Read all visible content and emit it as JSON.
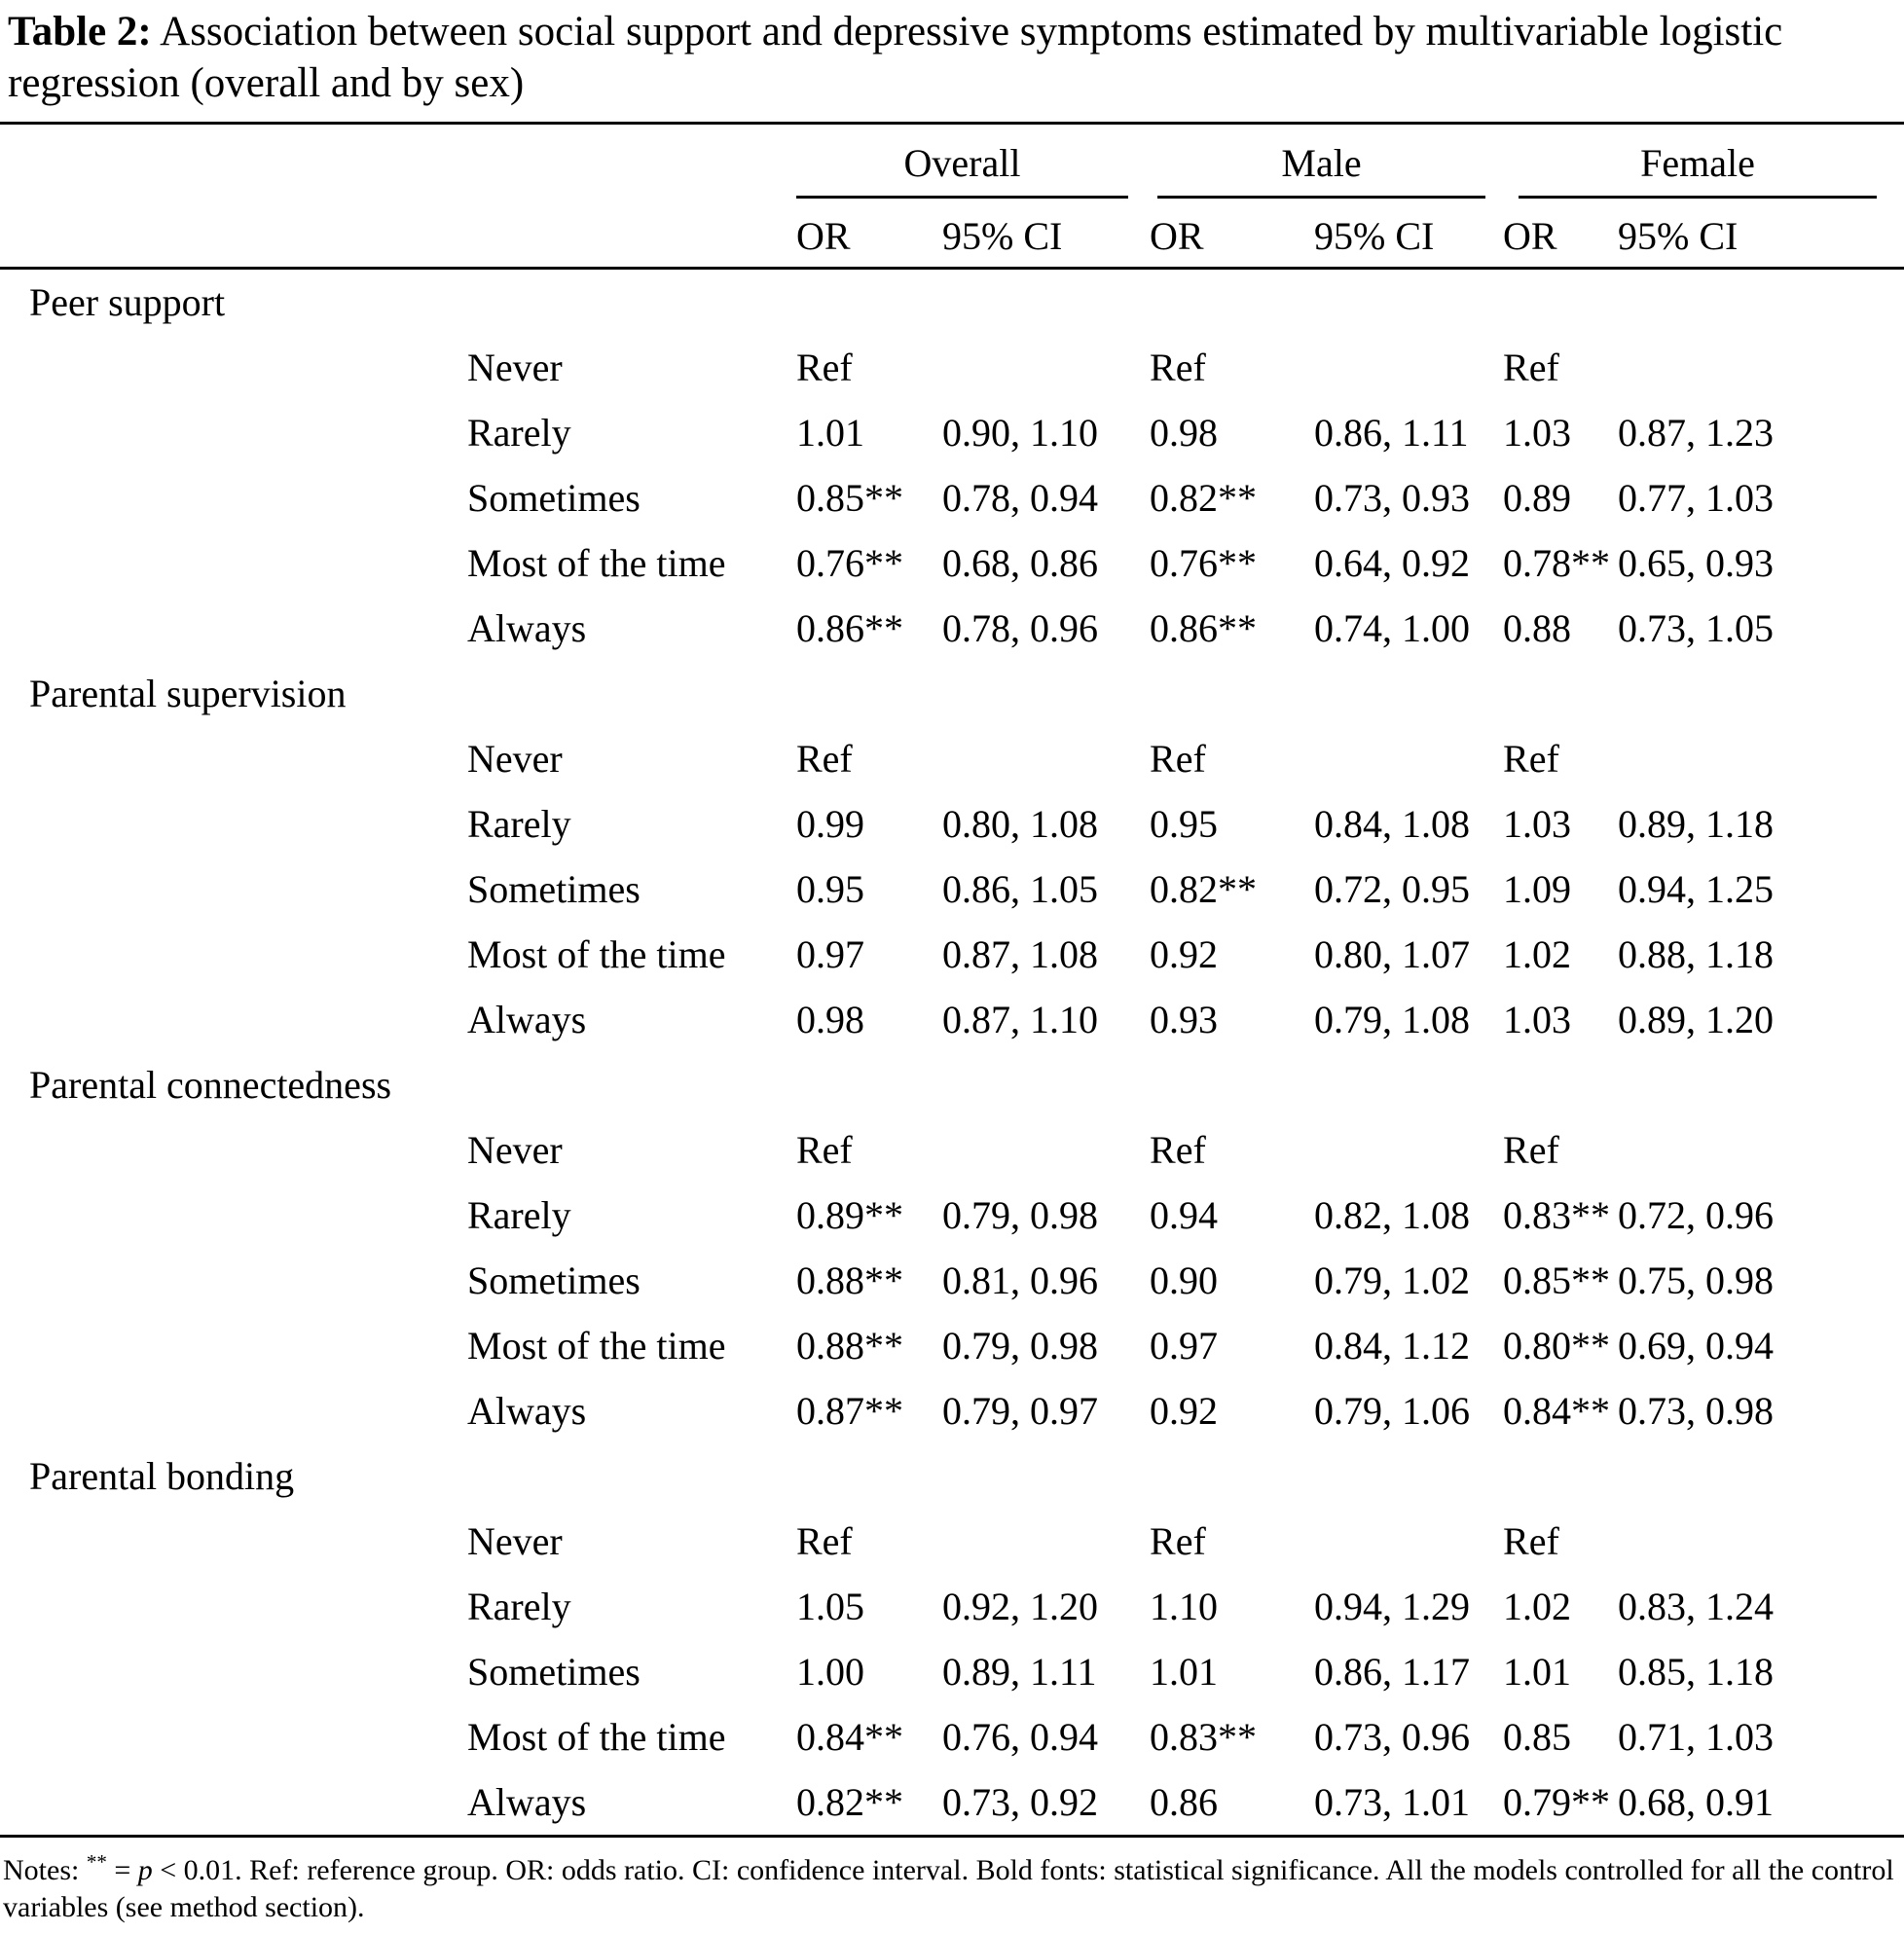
{
  "colors": {
    "text": "#000000",
    "background": "#ffffff"
  },
  "title": {
    "label": "Table 2:",
    "text": "Association between social support and depressive symptoms estimated by multivariable logistic regression (overall and by sex)"
  },
  "header": {
    "groups": [
      "Overall",
      "Male",
      "Female"
    ],
    "or": "OR",
    "ci": "95% CI"
  },
  "sections": [
    {
      "label": "Peer support",
      "rows": [
        {
          "category": "Never",
          "cells": [
            "Ref",
            "",
            "Ref",
            "",
            "Ref",
            ""
          ]
        },
        {
          "category": "Rarely",
          "cells": [
            "1.01",
            "0.90, 1.10",
            "0.98",
            "0.86, 1.11",
            "1.03",
            "0.87, 1.23"
          ]
        },
        {
          "category": "Sometimes",
          "cells": [
            "0.85**",
            "0.78, 0.94",
            "0.82**",
            "0.73, 0.93",
            "0.89",
            "0.77, 1.03"
          ]
        },
        {
          "category": "Most of the time",
          "cells": [
            "0.76**",
            "0.68, 0.86",
            "0.76**",
            "0.64, 0.92",
            "0.78**",
            "0.65, 0.93"
          ]
        },
        {
          "category": "Always",
          "cells": [
            "0.86**",
            "0.78, 0.96",
            "0.86**",
            "0.74, 1.00",
            "0.88",
            "0.73, 1.05"
          ]
        }
      ]
    },
    {
      "label": "Parental supervision",
      "rows": [
        {
          "category": "Never",
          "cells": [
            "Ref",
            "",
            "Ref",
            "",
            "Ref",
            ""
          ]
        },
        {
          "category": "Rarely",
          "cells": [
            "0.99",
            "0.80, 1.08",
            "0.95",
            "0.84, 1.08",
            "1.03",
            "0.89, 1.18"
          ]
        },
        {
          "category": "Sometimes",
          "cells": [
            "0.95",
            "0.86, 1.05",
            "0.82**",
            "0.72, 0.95",
            "1.09",
            "0.94, 1.25"
          ]
        },
        {
          "category": "Most of the time",
          "cells": [
            "0.97",
            "0.87, 1.08",
            "0.92",
            "0.80, 1.07",
            "1.02",
            "0.88, 1.18"
          ]
        },
        {
          "category": "Always",
          "cells": [
            "0.98",
            "0.87, 1.10",
            "0.93",
            "0.79, 1.08",
            "1.03",
            "0.89, 1.20"
          ]
        }
      ]
    },
    {
      "label": "Parental connectedness",
      "rows": [
        {
          "category": "Never",
          "cells": [
            "Ref",
            "",
            "Ref",
            "",
            "Ref",
            ""
          ]
        },
        {
          "category": "Rarely",
          "cells": [
            "0.89**",
            "0.79, 0.98",
            "0.94",
            "0.82, 1.08",
            "0.83**",
            "0.72, 0.96"
          ]
        },
        {
          "category": "Sometimes",
          "cells": [
            "0.88**",
            "0.81, 0.96",
            "0.90",
            "0.79, 1.02",
            "0.85**",
            "0.75, 0.98"
          ]
        },
        {
          "category": "Most of the time",
          "cells": [
            "0.88**",
            "0.79, 0.98",
            "0.97",
            "0.84, 1.12",
            "0.80**",
            "0.69, 0.94"
          ]
        },
        {
          "category": "Always",
          "cells": [
            "0.87**",
            "0.79, 0.97",
            "0.92",
            "0.79, 1.06",
            "0.84**",
            "0.73, 0.98"
          ]
        }
      ]
    },
    {
      "label": "Parental bonding",
      "rows": [
        {
          "category": "Never",
          "cells": [
            "Ref",
            "",
            "Ref",
            "",
            "Ref",
            ""
          ]
        },
        {
          "category": "Rarely",
          "cells": [
            "1.05",
            "0.92, 1.20",
            "1.10",
            "0.94, 1.29",
            "1.02",
            "0.83, 1.24"
          ]
        },
        {
          "category": "Sometimes",
          "cells": [
            "1.00",
            "0.89, 1.11",
            "1.01",
            "0.86, 1.17",
            "1.01",
            "0.85, 1.18"
          ]
        },
        {
          "category": "Most of the time",
          "cells": [
            "0.84**",
            "0.76, 0.94",
            "0.83**",
            "0.73, 0.96",
            "0.85",
            "0.71, 1.03"
          ]
        },
        {
          "category": "Always",
          "cells": [
            "0.82**",
            "0.73, 0.92",
            "0.86",
            "0.73, 1.01",
            "0.79**",
            "0.68, 0.91"
          ]
        }
      ]
    }
  ],
  "notes": {
    "prefix": "Notes: ",
    "marker": "**",
    "middle": " = ",
    "p": "p",
    "rest": " < 0.01. Ref: reference group. OR: odds ratio. CI: confidence interval. Bold fonts: statistical significance. All the models controlled for all the control variables (see method section)."
  }
}
